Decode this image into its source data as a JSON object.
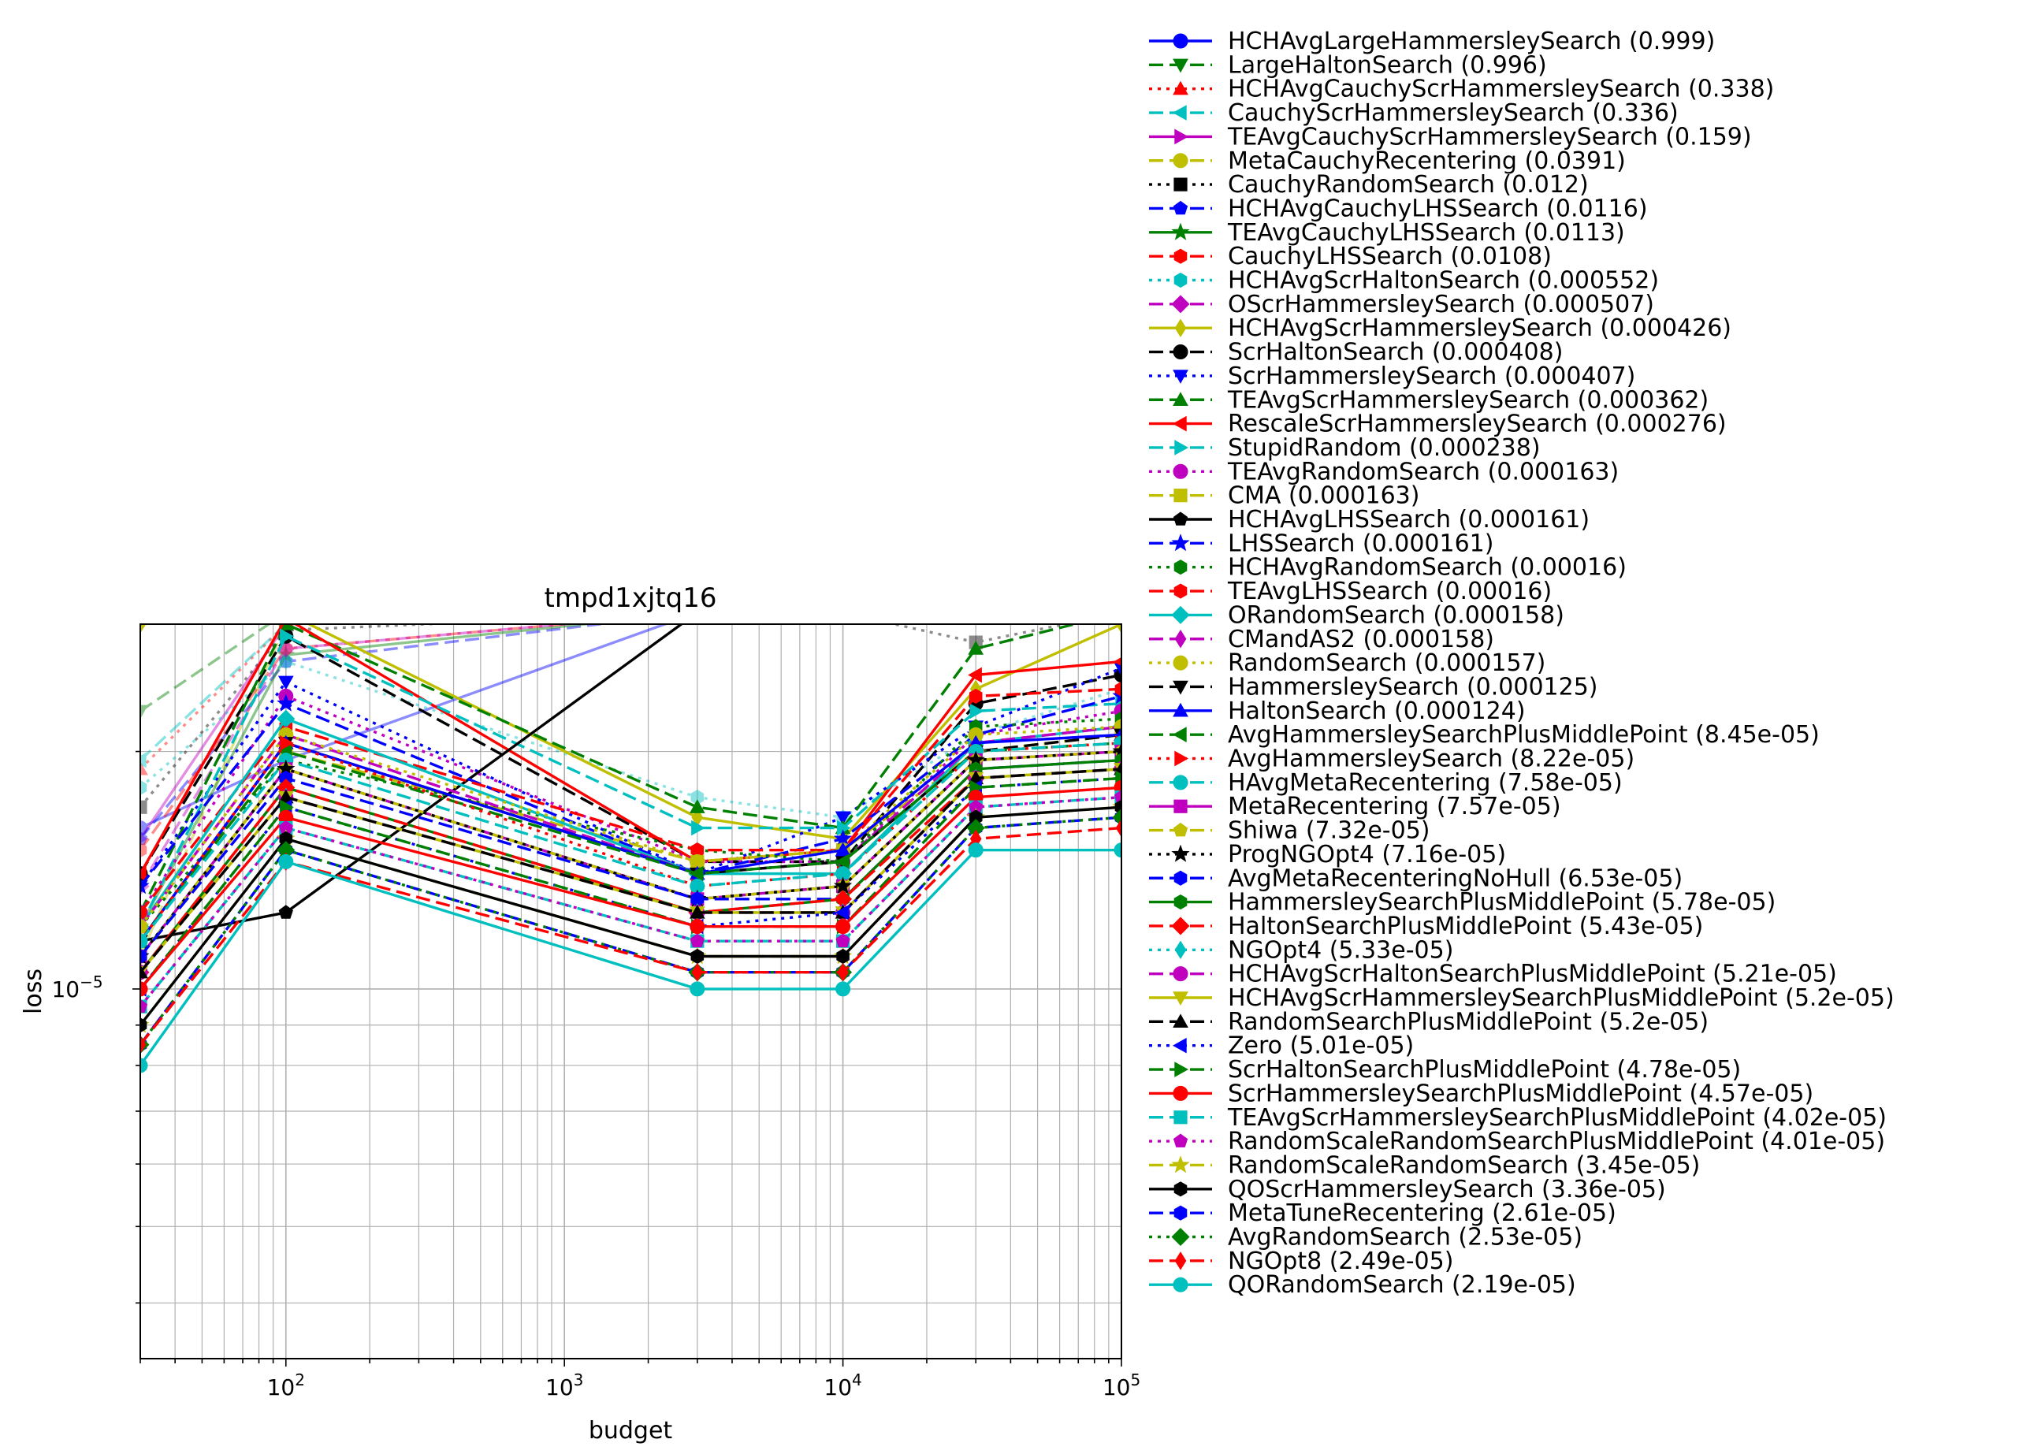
{
  "chart_data": {
    "type": "line",
    "title": "tmpd1xjtq16",
    "xlabel": "budget",
    "ylabel": "loss",
    "xscale": "log",
    "yscale": "log",
    "xlim": [
      30,
      100000
    ],
    "ylim": [
      3.4e-06,
      2.9e-05
    ],
    "x_ticks": [
      {
        "base": "10",
        "exp": "2"
      },
      {
        "base": "10",
        "exp": "3"
      },
      {
        "base": "10",
        "exp": "4"
      },
      {
        "base": "10",
        "exp": "5"
      }
    ],
    "y_ticks": [
      {
        "base": "10",
        "exp": "−5",
        "value": 1e-05
      }
    ],
    "grid": true,
    "legend_position": "outside-right",
    "x": [
      30,
      100,
      3000,
      10000,
      30000,
      100000
    ],
    "series": [
      {
        "name": "HCHAvgLargeHammersleySearch (0.999)",
        "color": "#0000ff",
        "linestyle": "solid",
        "marker": "o",
        "values": [
          1.6e-05,
          1.95e-05,
          3e-05,
          3e-05,
          3e-05,
          3e-05
        ]
      },
      {
        "name": "LargeHaltonSearch (0.996)",
        "color": "#008000",
        "linestyle": "dashed",
        "marker": "v",
        "values": [
          2.25e-05,
          3e-05,
          3e-05,
          3e-05,
          3e-05,
          3e-05
        ]
      },
      {
        "name": "HCHAvgCauchyScrHammersleySearch (0.338)",
        "color": "#ff0000",
        "linestyle": "dotted",
        "marker": "^",
        "values": [
          1.9e-05,
          2.9e-05,
          3e-05,
          3e-05,
          3e-05,
          3e-05
        ]
      },
      {
        "name": "CauchyScrHammersleySearch (0.336)",
        "color": "#00bfbf",
        "linestyle": "dashed",
        "marker": "<",
        "values": [
          1.95e-05,
          2.9e-05,
          3e-05,
          3e-05,
          3e-05,
          3e-05
        ]
      },
      {
        "name": "TEAvgCauchyScrHammersleySearch (0.159)",
        "color": "#bf00bf",
        "linestyle": "solid",
        "marker": ">",
        "values": [
          1.55e-05,
          2.9e-05,
          3e-05,
          3e-05,
          3e-05,
          3e-05
        ]
      },
      {
        "name": "MetaCauchyRecentering (0.0391)",
        "color": "#bfbf00",
        "linestyle": "dashed",
        "marker": "o",
        "values": [
          1.1e-05,
          2.9e-05,
          3e-05,
          3e-05,
          3e-05,
          3e-05
        ]
      },
      {
        "name": "CauchyRandomSearch (0.012)",
        "color": "#000000",
        "linestyle": "dotted",
        "marker": "s",
        "values": [
          1.7e-05,
          2.85e-05,
          3e-05,
          3e-05,
          2.75e-05,
          3e-05
        ]
      },
      {
        "name": "HCHAvgCauchyLHSSearch (0.0116)",
        "color": "#0000ff",
        "linestyle": "dashed",
        "marker": "p",
        "values": [
          1.55e-05,
          2.6e-05,
          3e-05,
          3e-05,
          3e-05,
          3e-05
        ]
      },
      {
        "name": "TEAvgCauchyLHSSearch (0.0113)",
        "color": "#008000",
        "linestyle": "solid",
        "marker": "*",
        "values": [
          1.2e-05,
          2.65e-05,
          3e-05,
          3e-05,
          3e-05,
          3e-05
        ]
      },
      {
        "name": "CauchyLHSSearch (0.0108)",
        "color": "#ff0000",
        "linestyle": "dashed",
        "marker": "h",
        "values": [
          1.5e-05,
          2.7e-05,
          3e-05,
          3e-05,
          3e-05,
          3e-05
        ]
      },
      {
        "name": "HCHAvgScrHaltonSearch (0.000552)",
        "color": "#00bfbf",
        "linestyle": "dotted",
        "marker": "h",
        "values": [
          1.8e-05,
          2.6e-05,
          1.75e-05,
          1.65e-05,
          2.1e-05,
          2.4e-05
        ]
      },
      {
        "name": "OScrHammersleySearch (0.000507)",
        "color": "#bf00bf",
        "linestyle": "dashed",
        "marker": "D",
        "values": [
          1.35e-05,
          2.7e-05,
          3e-05,
          3e-05,
          3e-05,
          3e-05
        ]
      },
      {
        "name": "HCHAvgScrHammersleySearch (0.000426)",
        "color": "#bfbf00",
        "linestyle": "solid",
        "marker": "d",
        "values": [
          2.9e-05,
          3e-05,
          1.65e-05,
          1.55e-05,
          2.4e-05,
          2.9e-05
        ]
      },
      {
        "name": "ScrHaltonSearch (0.000408)",
        "color": "#000000",
        "linestyle": "dashed",
        "marker": "o",
        "values": [
          1.4e-05,
          2.8e-05,
          1.45e-05,
          1.45e-05,
          2.3e-05,
          2.5e-05
        ]
      },
      {
        "name": "ScrHammersleySearch (0.000407)",
        "color": "#0000ff",
        "linestyle": "dotted",
        "marker": "v",
        "values": [
          1.35e-05,
          2.45e-05,
          1.4e-05,
          1.65e-05,
          2.15e-05,
          2.55e-05
        ]
      },
      {
        "name": "TEAvgScrHammersleySearch (0.000362)",
        "color": "#008000",
        "linestyle": "dashed",
        "marker": "^",
        "values": [
          1.25e-05,
          2.9e-05,
          1.7e-05,
          1.6e-05,
          2.7e-05,
          3e-05
        ]
      },
      {
        "name": "RescaleScrHammersleySearch (0.000276)",
        "color": "#ff0000",
        "linestyle": "solid",
        "marker": "<",
        "values": [
          1.4e-05,
          2.95e-05,
          1.45e-05,
          1.5e-05,
          2.5e-05,
          2.6e-05
        ]
      },
      {
        "name": "StupidRandom (0.000238)",
        "color": "#00bfbf",
        "linestyle": "dashed",
        "marker": ">",
        "values": [
          1.2e-05,
          2.8e-05,
          1.6e-05,
          1.6e-05,
          2.25e-05,
          2.3e-05
        ]
      },
      {
        "name": "TEAvgRandomSearch (0.000163)",
        "color": "#bf00bf",
        "linestyle": "dotted",
        "marker": "o",
        "values": [
          1.25e-05,
          2.35e-05,
          1.45e-05,
          1.45e-05,
          2.1e-05,
          2.25e-05
        ]
      },
      {
        "name": "CMA (0.000163)",
        "color": "#bfbf00",
        "linestyle": "dashed",
        "marker": "s",
        "values": [
          1.15e-05,
          2e-05,
          1.45e-05,
          1.5e-05,
          2e-05,
          2.1e-05
        ]
      },
      {
        "name": "HCHAvgLHSSearch (0.000161)",
        "color": "#000000",
        "linestyle": "solid",
        "marker": "p",
        "values": [
          1.15e-05,
          1.25e-05,
          3e-05,
          3e-05,
          3e-05,
          3e-05
        ]
      },
      {
        "name": "LHSSearch (0.000161)",
        "color": "#0000ff",
        "linestyle": "dashed",
        "marker": "*",
        "values": [
          1.35e-05,
          2.3e-05,
          1.4e-05,
          1.55e-05,
          2.1e-05,
          2.35e-05
        ]
      },
      {
        "name": "HCHAvgRandomSearch (0.00016)",
        "color": "#008000",
        "linestyle": "dotted",
        "marker": "h",
        "values": [
          1.2e-05,
          1.95e-05,
          1.5e-05,
          1.45e-05,
          2.15e-05,
          2.2e-05
        ]
      },
      {
        "name": "TEAvgLHSSearch (0.00016)",
        "color": "#ff0000",
        "linestyle": "dashed",
        "marker": "h",
        "values": [
          1.25e-05,
          2.15e-05,
          1.5e-05,
          1.5e-05,
          2.35e-05,
          2.4e-05
        ]
      },
      {
        "name": "ORandomSearch (0.000158)",
        "color": "#00bfbf",
        "linestyle": "solid",
        "marker": "D",
        "values": [
          1.2e-05,
          2.2e-05,
          1.4e-05,
          1.4e-05,
          2.05e-05,
          2.15e-05
        ]
      },
      {
        "name": "CMandAS2 (0.000158)",
        "color": "#bf00bf",
        "linestyle": "dashed",
        "marker": "d",
        "values": [
          1.2e-05,
          2.1e-05,
          1.4e-05,
          1.45e-05,
          2.05e-05,
          2.15e-05
        ]
      },
      {
        "name": "RandomSearch (0.000157)",
        "color": "#bfbf00",
        "linestyle": "dotted",
        "marker": "o",
        "values": [
          1.2e-05,
          2.1e-05,
          1.45e-05,
          1.5e-05,
          2.1e-05,
          2.15e-05
        ]
      },
      {
        "name": "HammersleySearch (0.000125)",
        "color": "#000000",
        "linestyle": "dashed",
        "marker": "v",
        "values": [
          1.15e-05,
          2.05e-05,
          1.4e-05,
          1.45e-05,
          2e-05,
          2.1e-05
        ]
      },
      {
        "name": "HaltonSearch (0.000124)",
        "color": "#0000ff",
        "linestyle": "solid",
        "marker": "^",
        "values": [
          1.15e-05,
          2.05e-05,
          1.4e-05,
          1.5e-05,
          2.05e-05,
          2.1e-05
        ]
      },
      {
        "name": "AvgHammersleySearchPlusMiddlePoint (8.45e-05)",
        "color": "#008000",
        "linestyle": "dashed",
        "marker": "<",
        "values": [
          1.15e-05,
          2e-05,
          1.4e-05,
          1.45e-05,
          2e-05,
          2.05e-05
        ]
      },
      {
        "name": "AvgHammersleySearch (8.22e-05)",
        "color": "#ff0000",
        "linestyle": "dotted",
        "marker": ">",
        "values": [
          1.15e-05,
          2.05e-05,
          1.35e-05,
          1.4e-05,
          2e-05,
          2.05e-05
        ]
      },
      {
        "name": "HAvgMetaRecentering (7.58e-05)",
        "color": "#00bfbf",
        "linestyle": "dashed",
        "marker": "o",
        "values": [
          1.15e-05,
          1.95e-05,
          1.35e-05,
          1.4e-05,
          2e-05,
          2.05e-05
        ]
      },
      {
        "name": "MetaRecentering (7.57e-05)",
        "color": "#bf00bf",
        "linestyle": "solid",
        "marker": "s",
        "values": [
          1.1e-05,
          1.9e-05,
          1.3e-05,
          1.35e-05,
          1.95e-05,
          2e-05
        ]
      },
      {
        "name": "Shiwa (7.32e-05)",
        "color": "#bfbf00",
        "linestyle": "dashed",
        "marker": "p",
        "values": [
          1.1e-05,
          1.9e-05,
          1.3e-05,
          1.35e-05,
          1.95e-05,
          2e-05
        ]
      },
      {
        "name": "ProgNGOpt4 (7.16e-05)",
        "color": "#000000",
        "linestyle": "dotted",
        "marker": "*",
        "values": [
          1.1e-05,
          1.9e-05,
          1.3e-05,
          1.35e-05,
          1.95e-05,
          2e-05
        ]
      },
      {
        "name": "AvgMetaRecenteringNoHull (6.53e-05)",
        "color": "#0000ff",
        "linestyle": "dashed",
        "marker": "h",
        "values": [
          1.1e-05,
          1.85e-05,
          1.3e-05,
          1.3e-05,
          1.9e-05,
          1.95e-05
        ]
      },
      {
        "name": "HammersleySearchPlusMiddlePoint (5.78e-05)",
        "color": "#008000",
        "linestyle": "solid",
        "marker": "h",
        "values": [
          1.05e-05,
          1.8e-05,
          1.25e-05,
          1.3e-05,
          1.9e-05,
          1.95e-05
        ]
      },
      {
        "name": "HaltonSearchPlusMiddlePoint (5.43e-05)",
        "color": "#ff0000",
        "linestyle": "dashed",
        "marker": "D",
        "values": [
          1.05e-05,
          1.8e-05,
          1.25e-05,
          1.3e-05,
          1.85e-05,
          1.9e-05
        ]
      },
      {
        "name": "NGOpt4 (5.33e-05)",
        "color": "#00bfbf",
        "linestyle": "dotted",
        "marker": "d",
        "values": [
          1.05e-05,
          1.75e-05,
          1.25e-05,
          1.25e-05,
          1.85e-05,
          1.9e-05
        ]
      },
      {
        "name": "HCHAvgScrHaltonSearchPlusMiddlePoint (5.21e-05)",
        "color": "#bf00bf",
        "linestyle": "dashed",
        "marker": "o",
        "values": [
          1.05e-05,
          1.75e-05,
          1.25e-05,
          1.25e-05,
          1.85e-05,
          1.9e-05
        ]
      },
      {
        "name": "HCHAvgScrHammersleySearchPlusMiddlePoint (5.2e-05)",
        "color": "#bfbf00",
        "linestyle": "solid",
        "marker": "v",
        "values": [
          1.05e-05,
          1.75e-05,
          1.25e-05,
          1.25e-05,
          1.85e-05,
          1.9e-05
        ]
      },
      {
        "name": "RandomSearchPlusMiddlePoint (5.2e-05)",
        "color": "#000000",
        "linestyle": "dashed",
        "marker": "^",
        "values": [
          1.05e-05,
          1.75e-05,
          1.25e-05,
          1.25e-05,
          1.85e-05,
          1.9e-05
        ]
      },
      {
        "name": "Zero (5.01e-05)",
        "color": "#0000ff",
        "linestyle": "dotted",
        "marker": "<",
        "values": [
          1e-05,
          1.7e-05,
          1.2e-05,
          1.25e-05,
          1.8e-05,
          1.85e-05
        ]
      },
      {
        "name": "ScrHaltonSearchPlusMiddlePoint (4.78e-05)",
        "color": "#008000",
        "linestyle": "dashed",
        "marker": ">",
        "values": [
          1e-05,
          1.7e-05,
          1.2e-05,
          1.2e-05,
          1.8e-05,
          1.85e-05
        ]
      },
      {
        "name": "ScrHammersleySearchPlusMiddlePoint (4.57e-05)",
        "color": "#ff0000",
        "linestyle": "solid",
        "marker": "o",
        "values": [
          1e-05,
          1.65e-05,
          1.2e-05,
          1.2e-05,
          1.75e-05,
          1.8e-05
        ]
      },
      {
        "name": "TEAvgScrHammersleySearchPlusMiddlePoint (4.02e-05)",
        "color": "#00bfbf",
        "linestyle": "dashed",
        "marker": "s",
        "values": [
          9.5e-06,
          1.6e-05,
          1.15e-05,
          1.15e-05,
          1.7e-05,
          1.75e-05
        ]
      },
      {
        "name": "RandomScaleRandomSearchPlusMiddlePoint (4.01e-05)",
        "color": "#bf00bf",
        "linestyle": "dotted",
        "marker": "p",
        "values": [
          9.5e-06,
          1.6e-05,
          1.15e-05,
          1.15e-05,
          1.7e-05,
          1.75e-05
        ]
      },
      {
        "name": "RandomScaleRandomSearch (3.45e-05)",
        "color": "#bfbf00",
        "linestyle": "dashed",
        "marker": "*",
        "values": [
          9e-06,
          1.55e-05,
          1.1e-05,
          1.1e-05,
          1.65e-05,
          1.7e-05
        ]
      },
      {
        "name": "QOScrHammersleySearch (3.36e-05)",
        "color": "#000000",
        "linestyle": "solid",
        "marker": "h",
        "values": [
          9e-06,
          1.55e-05,
          1.1e-05,
          1.1e-05,
          1.65e-05,
          1.7e-05
        ]
      },
      {
        "name": "MetaTuneRecentering (2.61e-05)",
        "color": "#0000ff",
        "linestyle": "dashed",
        "marker": "h",
        "values": [
          8.5e-06,
          1.5e-05,
          1.05e-05,
          1.05e-05,
          1.6e-05,
          1.65e-05
        ]
      },
      {
        "name": "AvgRandomSearch (2.53e-05)",
        "color": "#008000",
        "linestyle": "dotted",
        "marker": "D",
        "values": [
          8.5e-06,
          1.5e-05,
          1.05e-05,
          1.05e-05,
          1.6e-05,
          1.65e-05
        ]
      },
      {
        "name": "NGOpt8 (2.49e-05)",
        "color": "#ff0000",
        "linestyle": "dashed",
        "marker": "d",
        "values": [
          8.5e-06,
          1.45e-05,
          1.05e-05,
          1.05e-05,
          1.55e-05,
          1.6e-05
        ]
      },
      {
        "name": "QORandomSearch (2.19e-05)",
        "color": "#00bfbf",
        "linestyle": "solid",
        "marker": "o",
        "values": [
          8e-06,
          1.45e-05,
          1e-05,
          1e-05,
          1.5e-05,
          1.5e-05
        ]
      }
    ]
  }
}
